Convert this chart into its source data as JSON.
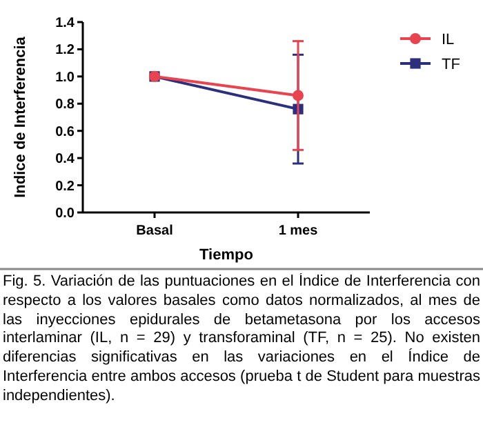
{
  "chart_data": {
    "type": "line",
    "xlabel": "Tiempo",
    "ylabel": "Indice de Interferencia",
    "categories": [
      "Basal",
      "1 mes"
    ],
    "ylim": [
      0,
      1.4
    ],
    "yticks": [
      {
        "value": 0,
        "label": "0.0"
      },
      {
        "value": 0.2,
        "label": "0.2"
      },
      {
        "value": 0.4,
        "label": "0.4"
      },
      {
        "value": 0.6,
        "label": "0.6"
      },
      {
        "value": 0.8,
        "label": "0.8"
      },
      {
        "value": 1,
        "label": "1.0"
      },
      {
        "value": 1.2,
        "label": "1.2"
      },
      {
        "value": 1.4,
        "label": "1.4"
      }
    ],
    "series": [
      {
        "name": "IL",
        "color": "#e8434f",
        "values": [
          1.0,
          0.86
        ],
        "errors": [
          null,
          0.4
        ],
        "marker": "circle"
      },
      {
        "name": "TF",
        "color": "#2b2f7e",
        "values": [
          1.0,
          0.76
        ],
        "errors": [
          null,
          0.4
        ],
        "marker": "square"
      }
    ],
    "legend": "top right",
    "annotations": [
      "Fig. 5. Variación de las puntuaciones en el Índice de Interferencia con respecto a los valores basales como datos normalizados, al mes de las inyecciones epidurales de betametasona por los accesos interlaminar (IL, n = 29) y transforaminal (TF, n = 25). No existen diferencias significativas en las variaciones en el Índice de Interferencia entre ambos accesos (prueba t de Student para muestras independientes)."
    ]
  }
}
